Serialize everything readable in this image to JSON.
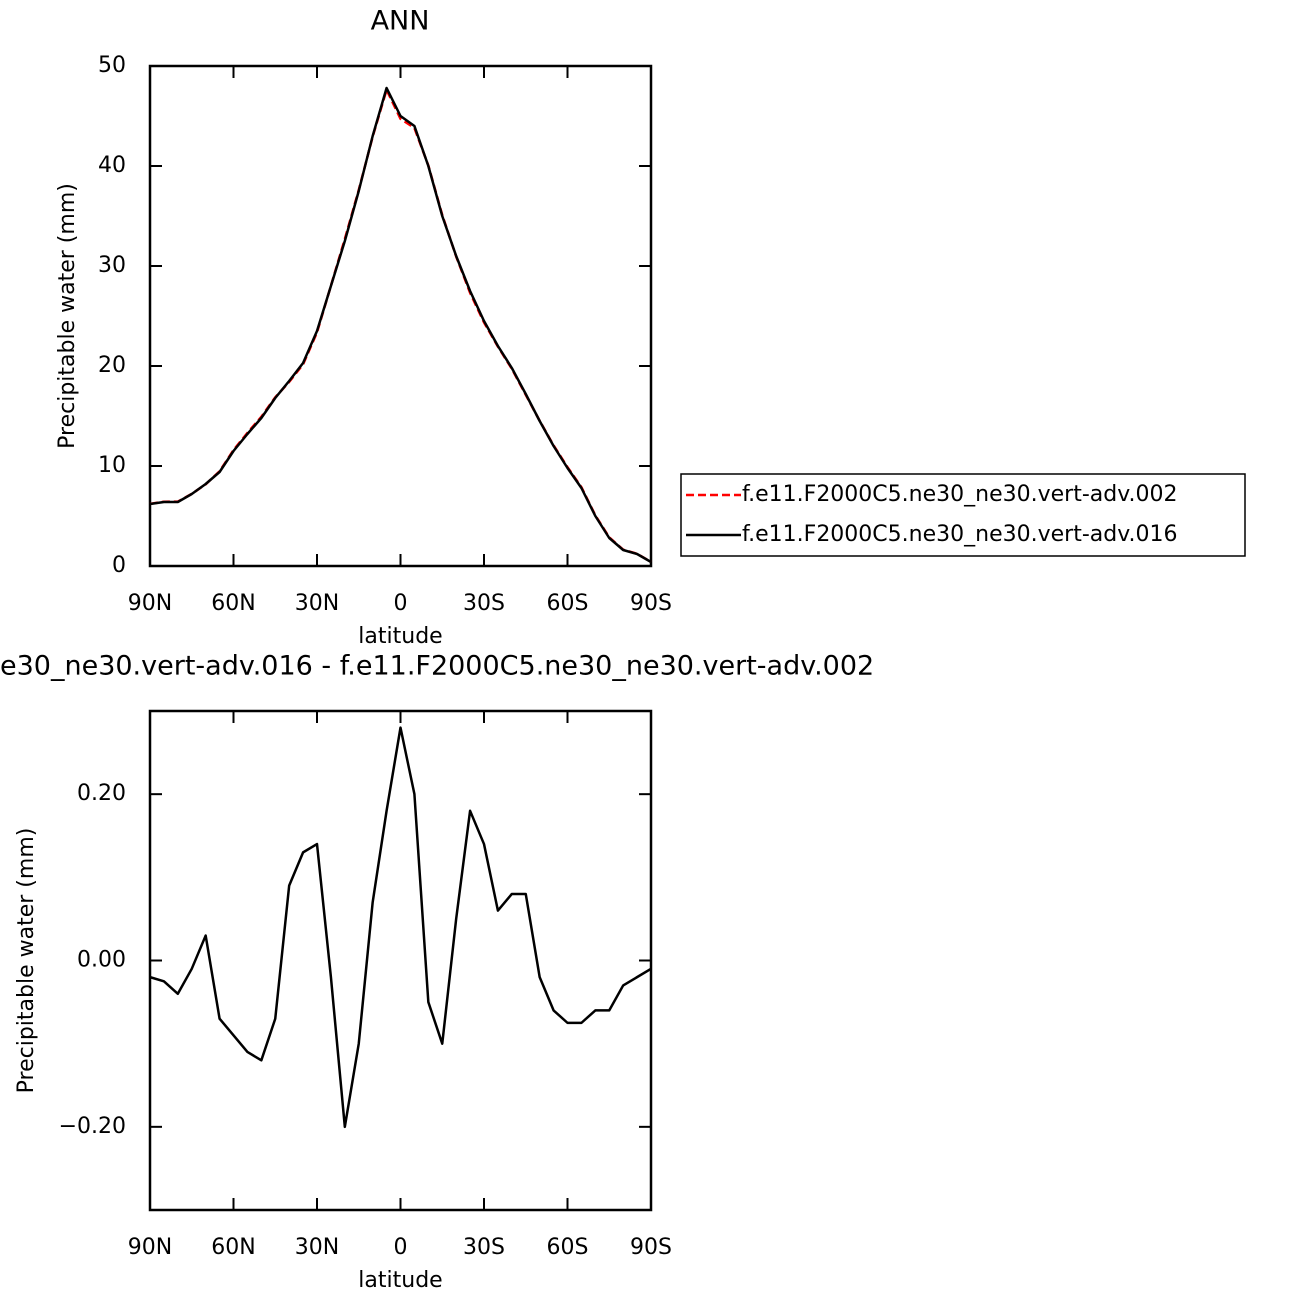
{
  "chart_data": [
    {
      "type": "line",
      "title": "ANN",
      "xlabel": "latitude",
      "ylabel": "Precipitable water (mm)",
      "x": [
        90,
        85,
        80,
        75,
        70,
        65,
        60,
        55,
        50,
        45,
        40,
        35,
        30,
        25,
        20,
        15,
        10,
        5,
        0,
        -5,
        -10,
        -15,
        -20,
        -25,
        -30,
        -35,
        -40,
        -45,
        -50,
        -55,
        -60,
        -65,
        -70,
        -75,
        -80,
        -85,
        -90
      ],
      "xlim": [
        90,
        -90
      ],
      "xticks": [
        {
          "value": 90,
          "label": "90N"
        },
        {
          "value": 60,
          "label": "60N"
        },
        {
          "value": 30,
          "label": "30N"
        },
        0,
        {
          "value": -30,
          "label": "30S"
        },
        {
          "value": -60,
          "label": "60S"
        },
        {
          "value": -90,
          "label": "90S"
        }
      ],
      "ylim": [
        0,
        50
      ],
      "yticks": [
        0,
        10,
        20,
        30,
        40,
        50
      ],
      "legend": "outside-right",
      "series": [
        {
          "name": "f.e11.F2000C5.ne30_ne30.vert-adv.002",
          "color": "#ff0000",
          "dash": true,
          "values": [
            6.22,
            6.43,
            6.44,
            7.21,
            8.17,
            9.47,
            11.59,
            13.31,
            14.92,
            16.87,
            18.41,
            20.17,
            23.36,
            28.02,
            32.7,
            37.6,
            42.93,
            47.62,
            44.72,
            43.8,
            40.05,
            35.1,
            30.95,
            27.32,
            24.36,
            21.94,
            19.72,
            17.12,
            14.52,
            12.06,
            9.88,
            7.88,
            5.06,
            2.86,
            1.63,
            1.22,
            0.41
          ]
        },
        {
          "name": "f.e11.F2000C5.ne30_ne30.vert-adv.016",
          "color": "#000000",
          "dash": false,
          "values": [
            6.2,
            6.4,
            6.4,
            7.2,
            8.2,
            9.4,
            11.5,
            13.2,
            14.8,
            16.8,
            18.5,
            20.3,
            23.5,
            28,
            32.5,
            37.5,
            43,
            47.8,
            45,
            44,
            40,
            35,
            31,
            27.5,
            24.5,
            22,
            19.8,
            17.2,
            14.5,
            12,
            9.8,
            7.8,
            5,
            2.8,
            1.6,
            1.2,
            0.4
          ]
        }
      ]
    },
    {
      "type": "line",
      "title": "e30_ne30.vert-adv.016 - f.e11.F2000C5.ne30_ne30.vert-adv.002",
      "xlabel": "latitude",
      "ylabel": "Precipitable water (mm)",
      "x": [
        90,
        85,
        80,
        75,
        70,
        65,
        60,
        55,
        50,
        45,
        40,
        35,
        30,
        25,
        20,
        15,
        10,
        5,
        0,
        -5,
        -10,
        -15,
        -20,
        -25,
        -30,
        -35,
        -40,
        -45,
        -50,
        -55,
        -60,
        -65,
        -70,
        -75,
        -80,
        -85,
        -90
      ],
      "xlim": [
        90,
        -90
      ],
      "xticks": [
        {
          "value": 90,
          "label": "90N"
        },
        {
          "value": 60,
          "label": "60N"
        },
        {
          "value": 30,
          "label": "30N"
        },
        0,
        {
          "value": -30,
          "label": "30S"
        },
        {
          "value": -60,
          "label": "60S"
        },
        {
          "value": -90,
          "label": "90S"
        }
      ],
      "ylim": [
        -0.3,
        0.3
      ],
      "yticks": [
        {
          "value": -0.2,
          "label": "−0.20"
        },
        {
          "value": 0,
          "label": "0.00"
        },
        {
          "value": 0.2,
          "label": "0.20"
        }
      ],
      "series": [
        {
          "color": "#000000",
          "dash": false,
          "values": [
            -0.02,
            -0.025,
            -0.04,
            -0.01,
            0.03,
            -0.07,
            -0.09,
            -0.11,
            -0.12,
            -0.07,
            0.09,
            0.13,
            0.14,
            -0.02,
            -0.2,
            -0.1,
            0.07,
            0.18,
            0.28,
            0.2,
            -0.05,
            -0.1,
            0.05,
            0.18,
            0.14,
            0.06,
            0.08,
            0.08,
            -0.02,
            -0.06,
            -0.075,
            -0.075,
            -0.06,
            -0.06,
            -0.03,
            -0.02,
            -0.01
          ]
        }
      ]
    }
  ]
}
